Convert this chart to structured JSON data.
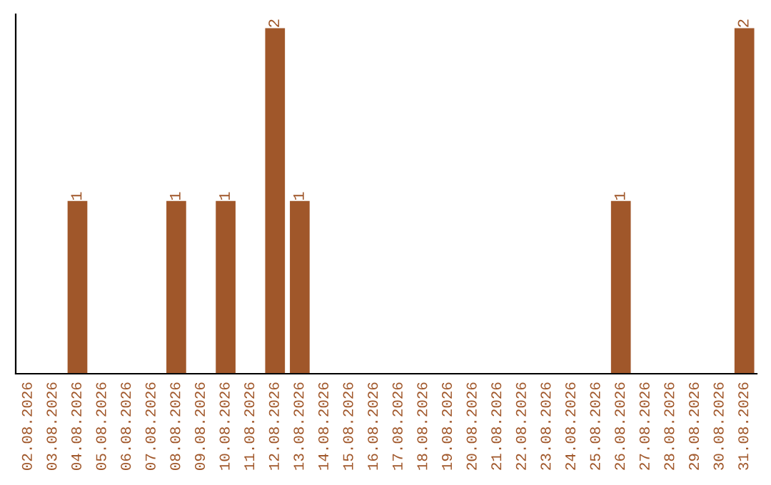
{
  "chart_data": {
    "type": "bar",
    "categories": [
      "02.08.2026",
      "03.08.2026",
      "04.08.2026",
      "05.08.2026",
      "06.08.2026",
      "07.08.2026",
      "08.08.2026",
      "09.08.2026",
      "10.08.2026",
      "11.08.2026",
      "12.08.2026",
      "13.08.2026",
      "14.08.2026",
      "15.08.2026",
      "16.08.2026",
      "17.08.2026",
      "18.08.2026",
      "19.08.2026",
      "20.08.2026",
      "21.08.2026",
      "22.08.2026",
      "23.08.2026",
      "24.08.2026",
      "25.08.2026",
      "26.08.2026",
      "27.08.2026",
      "28.08.2026",
      "29.08.2026",
      "30.08.2026",
      "31.08.2026"
    ],
    "values": [
      0,
      0,
      1,
      0,
      0,
      0,
      1,
      0,
      1,
      0,
      2,
      1,
      0,
      0,
      0,
      0,
      0,
      0,
      0,
      0,
      0,
      0,
      0,
      0,
      1,
      0,
      0,
      0,
      0,
      2
    ],
    "value_labels": [
      null,
      null,
      "1",
      null,
      null,
      null,
      "1",
      null,
      "1",
      null,
      "2",
      "1",
      null,
      null,
      null,
      null,
      null,
      null,
      null,
      null,
      null,
      null,
      null,
      null,
      "1",
      null,
      null,
      null,
      null,
      "2"
    ],
    "color": "#a0572a",
    "tick_labels": "x",
    "grid": false,
    "legend": false
  }
}
